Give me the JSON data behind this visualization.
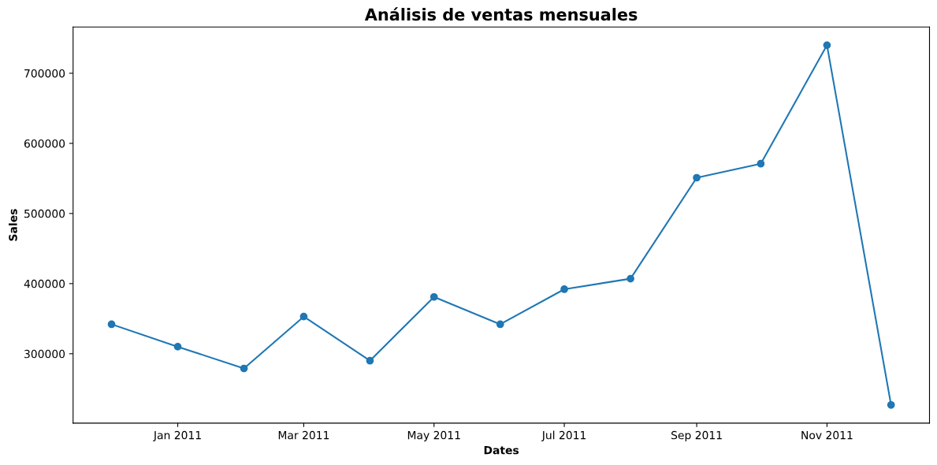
{
  "chart_data": {
    "type": "line",
    "title": "Análisis de ventas mensuales",
    "xlabel": "Dates",
    "ylabel": "Sales",
    "x": [
      "2010-12",
      "2011-01",
      "2011-02",
      "2011-03",
      "2011-04",
      "2011-05",
      "2011-06",
      "2011-07",
      "2011-08",
      "2011-09",
      "2011-10",
      "2011-11",
      "2011-12"
    ],
    "series": [
      {
        "color": "#1f77b4",
        "values": [
          342000,
          310000,
          279000,
          353000,
          290000,
          381000,
          342000,
          392000,
          407000,
          551000,
          571000,
          740000,
          227000
        ]
      }
    ],
    "marker": "circle",
    "line_style": "solid",
    "grid": false,
    "legend": false,
    "xlim": [
      "2010-11-13",
      "2011-12-19"
    ],
    "xticks": [
      {
        "value": "2011-01",
        "label": "Jan 2011"
      },
      {
        "value": "2011-03",
        "label": "Mar 2011"
      },
      {
        "value": "2011-05",
        "label": "May 2011"
      },
      {
        "value": "2011-07",
        "label": "Jul 2011"
      },
      {
        "value": "2011-09",
        "label": "Sep 2011"
      },
      {
        "value": "2011-11",
        "label": "Nov 2011"
      }
    ],
    "ylim": [
      201000,
      766000
    ],
    "yticks": [
      300000,
      400000,
      500000,
      600000,
      700000
    ]
  }
}
